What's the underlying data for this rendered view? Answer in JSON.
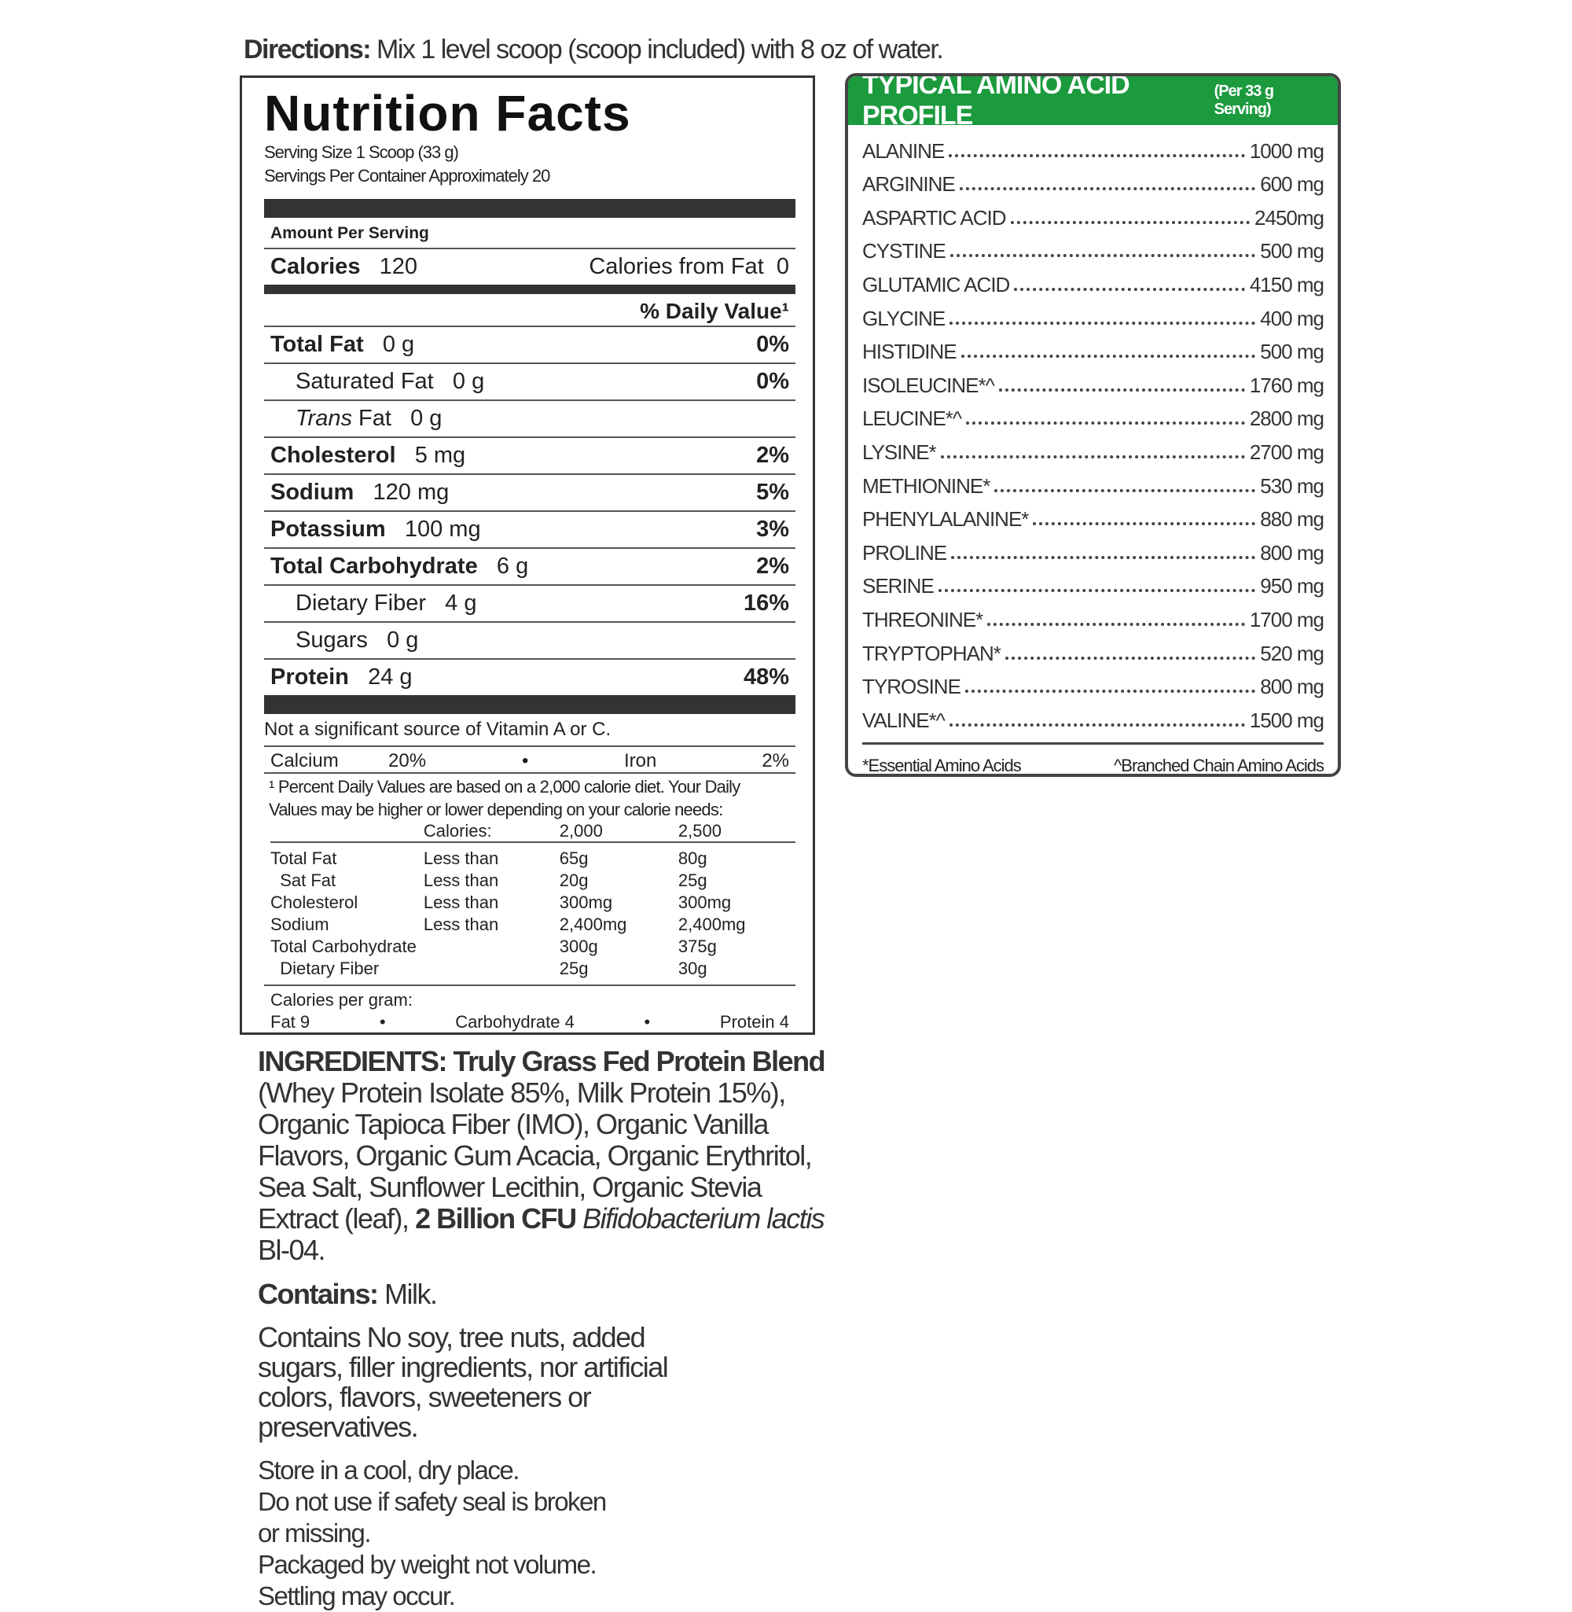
{
  "directions": {
    "label": "Directions:",
    "text": "Mix 1 level scoop (scoop included) with 8 oz of water."
  },
  "nutrition": {
    "title": "Nutrition Facts",
    "serving_size": "Serving Size 1 Scoop (33 g)",
    "servings": "Servings Per Container Approximately 20",
    "amount_per_serving": "Amount Per Serving",
    "calories_label": "Calories",
    "calories": "120",
    "calories_fat": "Calories from Fat  0",
    "dv_header": "% Daily Value¹",
    "rows": [
      {
        "name": "Total Fat",
        "amount": "0 g",
        "dv": "0%",
        "bold": true,
        "indent": false
      },
      {
        "name": "Saturated Fat",
        "amount": "0 g",
        "dv": "0%",
        "bold": false,
        "indent": true
      },
      {
        "name": "Trans Fat",
        "amount": "0 g",
        "dv": "",
        "bold": false,
        "indent": true
      },
      {
        "name": "Cholesterol",
        "amount": "5 mg",
        "dv": "2%",
        "bold": true,
        "indent": false
      },
      {
        "name": "Sodium",
        "amount": "120 mg",
        "dv": "5%",
        "bold": true,
        "indent": false
      },
      {
        "name": "Potassium",
        "amount": "100 mg",
        "dv": "3%",
        "bold": true,
        "indent": false
      },
      {
        "name": "Total Carbohydrate",
        "amount": "6 g",
        "dv": "2%",
        "bold": true,
        "indent": false
      },
      {
        "name": "Dietary Fiber",
        "amount": "4 g",
        "dv": "16%",
        "bold": false,
        "indent": true
      },
      {
        "name": "Sugars",
        "amount": "0 g",
        "dv": "",
        "bold": false,
        "indent": true
      },
      {
        "name": "Protein",
        "amount": "24 g",
        "dv": "48%",
        "bold": true,
        "indent": false
      }
    ],
    "vitamin_note": "Not a significant source of Vitamin A or C.",
    "calcium": "Calcium",
    "calcium_dv": "20%",
    "iron": "Iron",
    "iron_dv": "2%",
    "footnote": "¹ Percent Daily Values are based on a 2,000 calorie diet. Your Daily Values may be higher or lower depending on your calorie needs:",
    "dv_table": {
      "header": [
        "",
        "Calories:",
        "2,000",
        "2,500"
      ],
      "rows": [
        [
          "Total Fat",
          "Less than",
          "65g",
          "80g"
        ],
        [
          "  Sat Fat",
          "Less than",
          "20g",
          "25g"
        ],
        [
          "Cholesterol",
          "Less than",
          "300mg",
          "300mg"
        ],
        [
          "Sodium",
          "Less than",
          "2,400mg",
          "2,400mg"
        ],
        [
          "Total Carbohydrate",
          "",
          "300g",
          "375g"
        ],
        [
          "  Dietary Fiber",
          "",
          "25g",
          "30g"
        ]
      ]
    },
    "cal_per_gram": "Calories per gram:",
    "fat": "Fat 9",
    "carb": "Carbohydrate 4",
    "protein": "Protein 4"
  },
  "amino": {
    "title": "TYPICAL AMINO ACID PROFILE",
    "subtitle": "(Per 33 g Serving)",
    "header_color": "#1b9a3e",
    "items": [
      [
        "ALANINE",
        "1000 mg"
      ],
      [
        "ARGININE",
        "600 mg"
      ],
      [
        "ASPARTIC ACID",
        "2450mg"
      ],
      [
        "CYSTINE",
        "500 mg"
      ],
      [
        "GLUTAMIC ACID",
        "4150 mg"
      ],
      [
        "GLYCINE",
        "400 mg"
      ],
      [
        "HISTIDINE",
        "500 mg"
      ],
      [
        "ISOLEUCINE*^",
        "1760 mg"
      ],
      [
        "LEUCINE*^",
        "2800 mg"
      ],
      [
        "LYSINE*",
        "2700 mg"
      ],
      [
        "METHIONINE*",
        "530 mg"
      ],
      [
        "PHENYLALANINE*",
        "880 mg"
      ],
      [
        "PROLINE",
        "800 mg"
      ],
      [
        "SERINE",
        "950 mg"
      ],
      [
        "THREONINE*",
        "1700 mg"
      ],
      [
        "TRYPTOPHAN*",
        "520 mg"
      ],
      [
        "TYROSINE",
        "800 mg"
      ],
      [
        "VALINE*^",
        "1500 mg"
      ]
    ],
    "footnote_essential": "*Essential Amino Acids",
    "footnote_bcaa": "^Branched Chain Amino Acids"
  },
  "ingredients": {
    "label": "INGREDIENTS:",
    "blend": "Truly Grass Fed Protein Blend",
    "text": "(Whey Protein Isolate 85%, Milk Protein 15%), Organic Tapioca Fiber (IMO), Organic Vanilla Flavors, Organic Gum Acacia, Organic Erythritol, Sea Salt, Sunflower Lecithin, Organic Stevia Extract (leaf),",
    "cfu": "2 Billion CFU",
    "strain": "Bifidobacterium lactis",
    "strain_id": "Bl-04.",
    "contains_label": "Contains:",
    "contains": "Milk.",
    "free_from": "Contains No soy, tree nuts, added sugars, filler ingredients, nor artificial colors, flavors, sweeteners or preservatives.",
    "storage": [
      "Store in a cool, dry place.",
      "Do not use if safety seal is broken or missing.",
      "Packaged by weight not volume.",
      "Settling may occur."
    ]
  }
}
